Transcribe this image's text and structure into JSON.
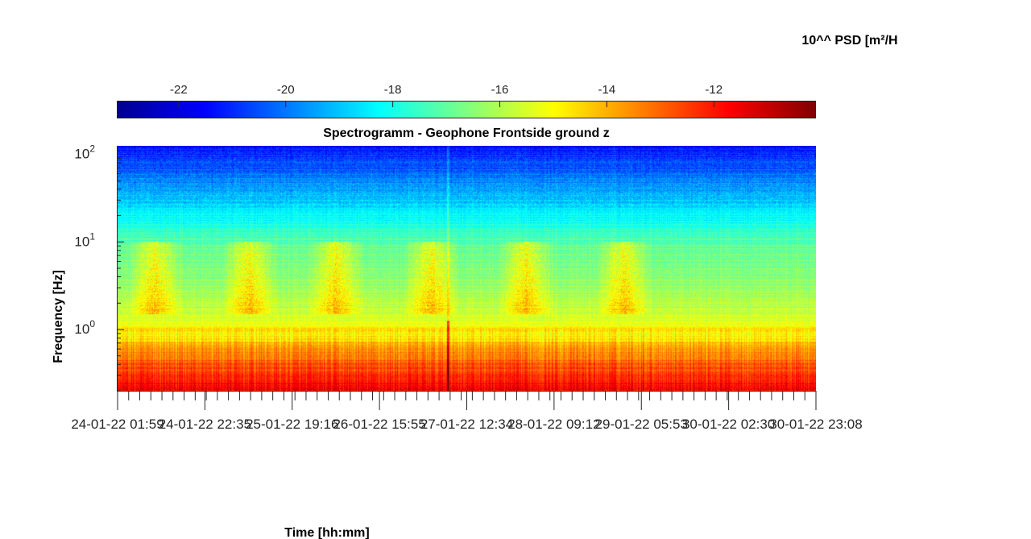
{
  "chart_data": {
    "type": "heatmap",
    "title": "Spectrogramm - Geophone Frontside ground z",
    "xlabel": "Time [hh:mm]",
    "ylabel": "Frequency [Hz]",
    "colorbar": {
      "label": "10^^ PSD [m²/H",
      "ticks": [
        "-22",
        "-20",
        "-18",
        "-16",
        "-14",
        "-12"
      ],
      "tick_values": [
        -22,
        -20,
        -18,
        -16,
        -14,
        -12
      ],
      "range": [
        -23.15,
        -10.1
      ],
      "placement": "top",
      "colormap": "jet"
    },
    "x_ticks": [
      "24-01-22 01:59",
      "24-01-22 22:35",
      "25-01-22 19:16",
      "26-01-22 15:55",
      "27-01-22 12:34",
      "28-01-22 09:12",
      "29-01-22 05:53",
      "30-01-22 02:30",
      "30-01-22 23:08"
    ],
    "y_ticks": [
      {
        "base": "10",
        "exp": "2",
        "value": 100
      },
      {
        "base": "10",
        "exp": "1",
        "value": 10
      },
      {
        "base": "10",
        "exp": "0",
        "value": 1
      }
    ],
    "y_scale": "log",
    "ylim": [
      0.2,
      125
    ],
    "x_days": 6.9,
    "daily_activity": {
      "band_hz": [
        1.5,
        6
      ],
      "bursts_day_offsets": [
        0.17,
        1.1,
        1.96,
        2.9,
        3.84,
        4.8
      ],
      "spike_day_offset": 3.26,
      "line_hz": 1.0
    }
  }
}
